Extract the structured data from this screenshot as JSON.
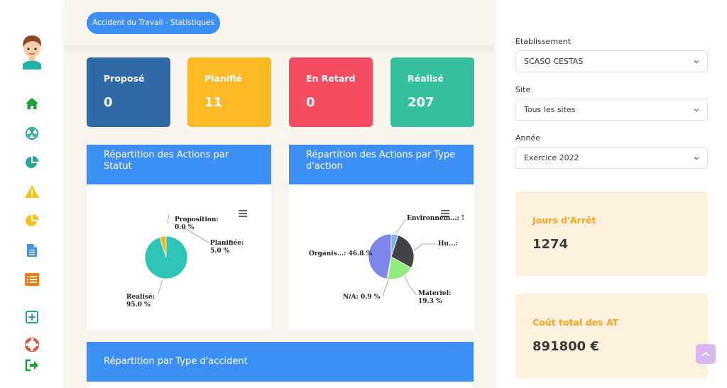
{
  "header": {
    "title": "Accident du Travail - Statistiques"
  },
  "stats": [
    {
      "label": "Proposé",
      "value": "0",
      "color": "#2f6aa6"
    },
    {
      "label": "Planifié",
      "value": "11",
      "color": "#fdb825"
    },
    {
      "label": "En Retard",
      "value": "0",
      "color": "#f44c61"
    },
    {
      "label": "Réalisé",
      "value": "207",
      "color": "#35bf9e"
    }
  ],
  "panels": {
    "statut": {
      "title": "Répartition des Actions par Statut"
    },
    "type_action": {
      "title": "Répartition des Actions par Type d'action"
    },
    "type_accident": {
      "title": "Répartition par Type d'accident"
    }
  },
  "chart_data": [
    {
      "type": "pie",
      "slices": [
        {
          "name": "Realisé",
          "value": 95.0,
          "color": "#2ec4b6"
        },
        {
          "name": "Planifiée",
          "value": 5.0,
          "color": "#f7b322"
        },
        {
          "name": "Proposition",
          "value": 0.0,
          "color": "#3d8ff5"
        }
      ],
      "labels": [
        {
          "name": "Proposition:",
          "pct": "0.0 %"
        },
        {
          "name": "Planifiée:",
          "pct": "5.0 %"
        },
        {
          "name": "Realisé:",
          "pct": "95.0 %"
        }
      ]
    },
    {
      "type": "pie",
      "slices": [
        {
          "name": "Environnem...",
          "value": 5.0,
          "color": "#7cb5ec"
        },
        {
          "name": "Hu...",
          "value": 28.0,
          "color": "#434348"
        },
        {
          "name": "Materiel",
          "value": 19.3,
          "color": "#90ed7d"
        },
        {
          "name": "N/A",
          "value": 0.9,
          "color": "#f7a35c"
        },
        {
          "name": "Organis...",
          "value": 46.8,
          "color": "#8085e9"
        }
      ],
      "labels": [
        {
          "text": "Environnem...: !"
        },
        {
          "text": "Hu...:"
        },
        {
          "name": "Materiel:",
          "pct": "19.3 %"
        },
        {
          "text": "N/A: 0.9 %"
        },
        {
          "text": "Organis...: 46.8 %"
        }
      ]
    }
  ],
  "filters": [
    {
      "label": "Etablissement",
      "value": "SCASO CESTAS"
    },
    {
      "label": "Site",
      "value": "Tous les sites"
    },
    {
      "label": "Année",
      "value": "Exercice 2022"
    }
  ],
  "kpis": [
    {
      "label": "Jours d'Arrêt",
      "value": "1274"
    },
    {
      "label": "Coût total des AT",
      "value": "891800 €"
    }
  ],
  "nav_icons": [
    "home-icon",
    "radiation-icon",
    "pie-chart-icon",
    "warning-icon",
    "pie-chart-alt-icon",
    "document-icon",
    "list-icon",
    "plus-square-icon",
    "lifebuoy-icon",
    "sign-out-icon"
  ],
  "colors": {
    "accent": "#3d8ff5",
    "nav_green": "#1e9e3a",
    "nav_yellow": "#f7c316",
    "nav_blue": "#4a90e2",
    "nav_orange": "#f57c00",
    "nav_teal": "#25a88f",
    "nav_red": "#e74c3c"
  }
}
